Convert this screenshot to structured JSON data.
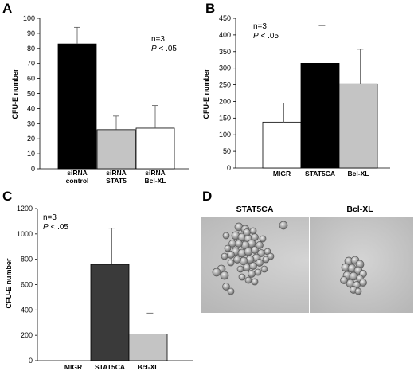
{
  "colors": {
    "black_bar": "#000000",
    "gray_bar": "#c4c4c4",
    "white_bar": "#ffffff",
    "dark_bar": "#3a3a3a",
    "axis": "#000000",
    "micro_bg": "#c9c9c9",
    "cell": "#8f8f8f"
  },
  "chart_data": [
    {
      "panel": "A",
      "type": "bar",
      "ylabel": "CFU-E number",
      "ylim": [
        0,
        100
      ],
      "yticks": [
        0,
        10,
        20,
        30,
        40,
        50,
        60,
        70,
        80,
        90,
        100
      ],
      "categories": [
        [
          "siRNA",
          "control"
        ],
        [
          "siRNA",
          "STAT5"
        ],
        [
          "siRNA",
          "Bcl-XL"
        ]
      ],
      "values": [
        83,
        26,
        27
      ],
      "errors": [
        11,
        9,
        15
      ],
      "fills": [
        "black",
        "gray",
        "white"
      ],
      "notes": [
        "n=3",
        "P < .05"
      ]
    },
    {
      "panel": "B",
      "type": "bar",
      "ylabel": "CFU-E number",
      "ylim": [
        0,
        450
      ],
      "yticks": [
        0,
        50,
        100,
        150,
        200,
        250,
        300,
        350,
        400,
        450
      ],
      "categories": [
        [
          "MIGR"
        ],
        [
          "STAT5CA"
        ],
        [
          "Bcl-XL"
        ]
      ],
      "values": [
        138,
        315,
        253
      ],
      "errors": [
        57,
        113,
        104
      ],
      "fills": [
        "white",
        "black",
        "gray"
      ],
      "notes": [
        "n=3",
        "P < .05"
      ]
    },
    {
      "panel": "C",
      "type": "bar",
      "ylabel": "CFU-E number",
      "ylim": [
        0,
        1200
      ],
      "yticks": [
        0,
        200,
        400,
        600,
        800,
        1000,
        1200
      ],
      "categories": [
        [
          "MIGR"
        ],
        [
          "STAT5CA"
        ],
        [
          "Bcl-XL"
        ]
      ],
      "values": [
        0,
        760,
        210
      ],
      "errors": [
        0,
        285,
        165
      ],
      "fills": [
        "white",
        "dark",
        "gray"
      ],
      "notes": [
        "n=3",
        "P < .05"
      ]
    }
  ],
  "panel_d": {
    "letter": "D",
    "labels": [
      "STAT5CA",
      "Bcl-XL"
    ]
  }
}
